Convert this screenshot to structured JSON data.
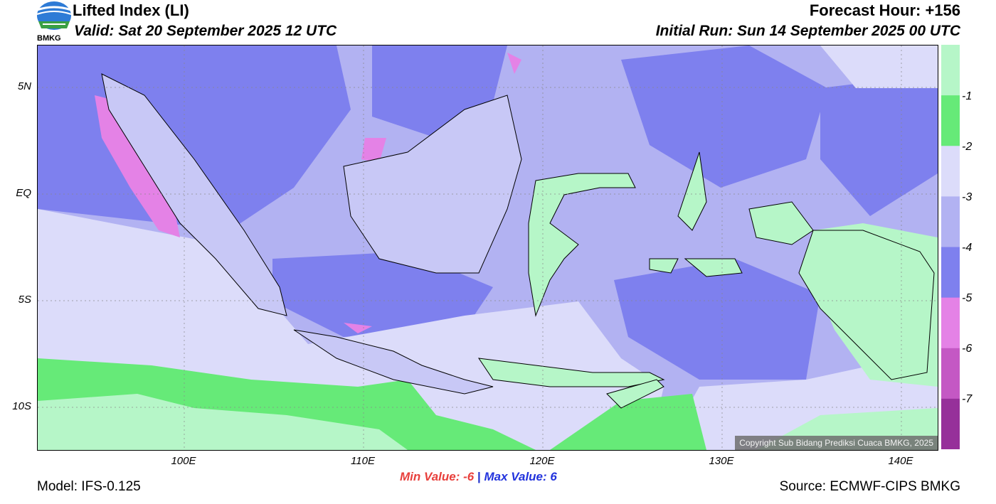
{
  "header": {
    "title": "Lifted Index (LI)",
    "valid": "Valid: Sat 20 September 2025 12 UTC",
    "forecast_hour": "Forecast Hour: +156",
    "initial_run": "Initial Run: Sun 14 September 2025 00 UTC",
    "logo_text": "BMKG"
  },
  "footer": {
    "model": "Model: IFS-0.125",
    "source": "Source: ECMWF-CIPS BMKG",
    "min_label": "Min Value:",
    "min_value": "-6",
    "separator": "|",
    "max_label": "Max Value:",
    "max_value": "6"
  },
  "map": {
    "copyright": "Copyright Sub Bidang Prediksi Cuaca BMKG, 2025",
    "lat_labels": [
      "5N",
      "EQ",
      "5S",
      "10S"
    ],
    "lon_labels": [
      "100E",
      "110E",
      "120E",
      "130E",
      "140E"
    ]
  },
  "colorbar": {
    "labels": [
      "-1",
      "-2",
      "-3",
      "-4",
      "-5",
      "-6",
      "-7"
    ],
    "colors": [
      "#b6f6c8",
      "#66ea78",
      "#dcdcfa",
      "#b2b2f2",
      "#7e80ee",
      "#e482e6",
      "#c458c4",
      "#96309a"
    ]
  }
}
